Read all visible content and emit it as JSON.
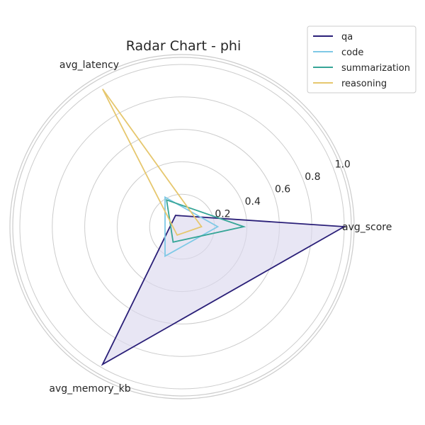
{
  "chart_data": {
    "type": "radar",
    "title": "Radar Chart - phi",
    "axes": [
      "avg_score",
      "avg_latency",
      "avg_memory_kb"
    ],
    "rlim": [
      0,
      1.0
    ],
    "r_ticks": [
      "0.2",
      "0.4",
      "0.6",
      "0.8",
      "1.0"
    ],
    "r_tick_values": [
      0.2,
      0.4,
      0.6,
      0.8,
      1.0
    ],
    "grid": true,
    "legend_position": "top-right",
    "series": [
      {
        "name": "qa",
        "color": "#2a1f78",
        "values": [
          1.0,
          0.08,
          0.98
        ],
        "filled": true,
        "fill_color": "#dcd8ee"
      },
      {
        "name": "code",
        "color": "#7ec9e6",
        "values": [
          0.22,
          0.21,
          0.21
        ]
      },
      {
        "name": "summarization",
        "color": "#36a597",
        "values": [
          0.38,
          0.19,
          0.11
        ]
      },
      {
        "name": "reasoning",
        "color": "#e6c76e",
        "values": [
          0.12,
          0.98,
          0.06
        ]
      }
    ]
  }
}
